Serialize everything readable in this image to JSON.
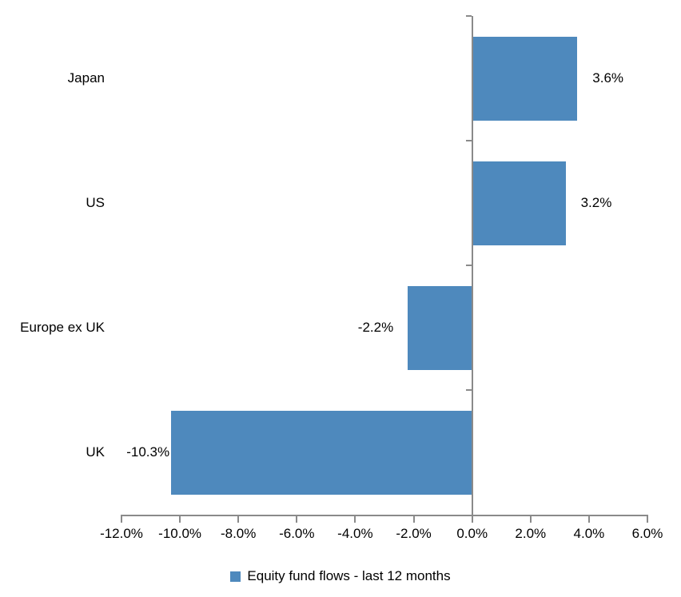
{
  "chart_data": {
    "type": "bar",
    "orientation": "horizontal",
    "title": "",
    "categories": [
      "Japan",
      "US",
      "Europe ex UK",
      "UK"
    ],
    "series": [
      {
        "name": "Equity fund flows - last 12 months",
        "values": [
          3.6,
          3.2,
          -2.2,
          -10.3
        ],
        "data_labels": [
          "3.6%",
          "3.2%",
          "-2.2%",
          "-10.3%"
        ],
        "color": "#4e89bd"
      }
    ],
    "xlabel": "",
    "ylabel": "",
    "xlim": [
      -12,
      6
    ],
    "x_tick_values": [
      -12,
      -10,
      -8,
      -6,
      -4,
      -2,
      0,
      2,
      4,
      6
    ],
    "x_tick_labels": [
      "-12.0%",
      "-10.0%",
      "-8.0%",
      "-6.0%",
      "-4.0%",
      "-2.0%",
      "0.0%",
      "2.0%",
      "4.0%",
      "6.0%"
    ],
    "grid": false,
    "legend_position": "bottom-center",
    "axis_color": "#8a8a8a",
    "text_color": "#000000",
    "background_color": "#ffffff"
  },
  "legend": {
    "items": [
      {
        "label": "Equity fund flows - last 12 months",
        "color": "#4e89bd"
      }
    ]
  }
}
